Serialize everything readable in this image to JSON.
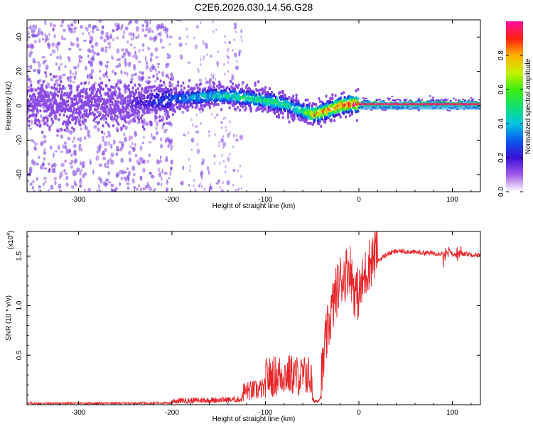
{
  "title": "C2E6.2026.030.14.56.G28",
  "chart_data": [
    {
      "type": "heatmap",
      "description_id": "spectrogram",
      "xlabel": "Height of straight line (km)",
      "ylabel": "Frequency (Hz)",
      "xlim": [
        -355,
        130
      ],
      "ylim": [
        -50,
        50
      ],
      "x_ticks": [
        -300,
        -200,
        -100,
        0,
        100
      ],
      "y_ticks": [
        -40,
        -20,
        0,
        20,
        40
      ],
      "colorbar": {
        "label": "Normalized spectral amplitude",
        "range": [
          0.0,
          1.0
        ],
        "ticks": [
          0.0,
          0.2,
          0.4,
          0.6,
          0.8
        ],
        "tick_labels": [
          "0.0",
          "0.2",
          "0.4",
          "0.6",
          "0.8"
        ]
      },
      "ridge": {
        "x": [
          -355,
          -300,
          -250,
          -200,
          -175,
          -150,
          -125,
          -100,
          -90,
          -80,
          -70,
          -60,
          -50,
          -40,
          -30,
          -20,
          -10,
          0,
          50,
          100,
          130
        ],
        "frequency": [
          1,
          1,
          1,
          4,
          5,
          6,
          5,
          3,
          2,
          1,
          -1,
          -3,
          -5,
          -4,
          -2,
          0,
          1,
          1,
          1,
          1,
          1
        ],
        "peak_amplitude": [
          0.1,
          0.12,
          0.12,
          0.3,
          0.4,
          0.45,
          0.5,
          0.5,
          0.55,
          0.5,
          0.45,
          0.5,
          0.8,
          0.8,
          0.85,
          0.9,
          0.92,
          0.95,
          0.96,
          0.96,
          0.96
        ]
      }
    },
    {
      "type": "line",
      "description_id": "snr",
      "xlabel": "Height of straight line (km)",
      "ylabel": "SNR (10 * v/v)",
      "y_scale_label": "(x10",
      "y_scale_exp": "4",
      "y_scale_close": ")",
      "xlim": [
        -355,
        130
      ],
      "ylim": [
        0,
        1.75
      ],
      "x_ticks": [
        -300,
        -200,
        -100,
        0,
        100
      ],
      "y_ticks": [
        0.5,
        1.0,
        1.5
      ],
      "y_tick_labels": [
        "0.5",
        "1.0",
        "1.5"
      ],
      "color": "#e8262a",
      "series": [
        {
          "name": "SNR",
          "x": [
            -355,
            -300,
            -250,
            -200,
            -180,
            -160,
            -140,
            -125,
            -110,
            -100,
            -90,
            -80,
            -70,
            -60,
            -55,
            -50,
            -45,
            -40,
            -35,
            -30,
            -25,
            -20,
            -15,
            -10,
            -5,
            0,
            5,
            10,
            20,
            30,
            40,
            50,
            60,
            80,
            90,
            95,
            100,
            110,
            120,
            130
          ],
          "values": [
            0.01,
            0.01,
            0.015,
            0.02,
            0.03,
            0.04,
            0.05,
            0.06,
            0.1,
            0.15,
            0.2,
            0.25,
            0.22,
            0.18,
            0.25,
            0.05,
            0.03,
            0.15,
            0.55,
            0.8,
            1.0,
            1.15,
            1.2,
            1.3,
            1.05,
            1.0,
            1.15,
            1.3,
            1.45,
            1.52,
            1.55,
            1.55,
            1.54,
            1.53,
            1.53,
            1.6,
            1.52,
            1.53,
            1.52,
            1.51
          ]
        }
      ]
    }
  ]
}
